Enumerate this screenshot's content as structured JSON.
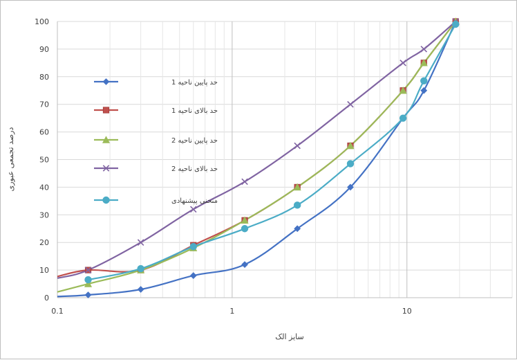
{
  "chart_data": {
    "type": "line",
    "x_scale": "log",
    "xlim": [
      0.1,
      40
    ],
    "ylim": [
      0,
      100
    ],
    "xlabel": "سایز الک",
    "ylabel": "درصد تجمعی عبوری",
    "x_ticks": [
      "0.1",
      "1",
      "10"
    ],
    "y_ticks": [
      "0",
      "10",
      "20",
      "30",
      "40",
      "50",
      "60",
      "70",
      "80",
      "90",
      "100"
    ],
    "grid": true,
    "legend_position": "left-inside",
    "series": [
      {
        "name": "حد پایین ناحیه 1",
        "color": "#4472c4",
        "marker": "diamond",
        "x": [
          0.075,
          0.15,
          0.3,
          0.6,
          1.18,
          2.36,
          4.75,
          9.5,
          12.5,
          19
        ],
        "y": [
          0,
          1,
          3,
          8,
          12,
          25,
          40,
          65,
          75,
          100
        ]
      },
      {
        "name": "حد بالای ناحیه 1",
        "color": "#c0504d",
        "marker": "square",
        "x": [
          0.075,
          0.15,
          0.3,
          0.6,
          1.18,
          2.36,
          4.75,
          9.5,
          12.5,
          19
        ],
        "y": [
          6,
          10,
          10,
          19,
          28,
          40,
          55,
          75,
          85,
          100
        ]
      },
      {
        "name": "حد پایین ناحیه 2",
        "color": "#9bbb59",
        "marker": "triangle",
        "x": [
          0.075,
          0.15,
          0.3,
          0.6,
          1.18,
          2.36,
          4.75,
          9.5,
          12.5,
          19
        ],
        "y": [
          0,
          5,
          10,
          18,
          28,
          40,
          55,
          75,
          85,
          100
        ]
      },
      {
        "name": "حد بالای ناحیه 2",
        "color": "#8064a2",
        "marker": "x",
        "x": [
          0.075,
          0.15,
          0.3,
          0.6,
          1.18,
          2.36,
          4.75,
          9.5,
          12.5,
          19
        ],
        "y": [
          5,
          10,
          20,
          32,
          42,
          55,
          70,
          85,
          90,
          100
        ]
      },
      {
        "name": "منحنی پیشنهادی",
        "color": "#4bacc6",
        "marker": "circle",
        "x": [
          0.15,
          0.3,
          0.6,
          1.18,
          2.36,
          4.75,
          9.5,
          12.5,
          19
        ],
        "y": [
          6.5,
          10.5,
          18.5,
          25,
          33.5,
          48.5,
          65,
          78.5,
          99
        ]
      }
    ]
  }
}
